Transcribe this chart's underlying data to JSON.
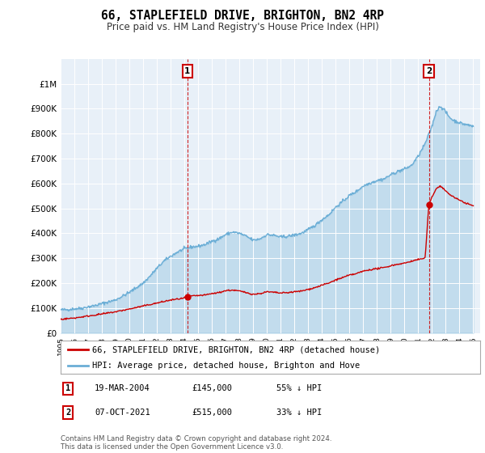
{
  "title": "66, STAPLEFIELD DRIVE, BRIGHTON, BN2 4RP",
  "subtitle": "Price paid vs. HM Land Registry's House Price Index (HPI)",
  "ylim": [
    0,
    1100000
  ],
  "yticks": [
    0,
    100000,
    200000,
    300000,
    400000,
    500000,
    600000,
    700000,
    800000,
    900000,
    1000000
  ],
  "ytick_labels": [
    "£0",
    "£100K",
    "£200K",
    "£300K",
    "£400K",
    "£500K",
    "£600K",
    "£700K",
    "£800K",
    "£900K",
    "£1M"
  ],
  "hpi_color": "#6baed6",
  "hpi_fill_color": "#d6e8f7",
  "price_color": "#cc0000",
  "annotation_color": "#cc0000",
  "bg_color": "#ffffff",
  "chart_bg_color": "#e8f0f8",
  "grid_color": "#ffffff",
  "legend_label_price": "66, STAPLEFIELD DRIVE, BRIGHTON, BN2 4RP (detached house)",
  "legend_label_hpi": "HPI: Average price, detached house, Brighton and Hove",
  "transaction1_date": "19-MAR-2004",
  "transaction1_price": "£145,000",
  "transaction1_note": "55% ↓ HPI",
  "transaction1_label": "1",
  "transaction1_x": 2004.22,
  "transaction1_y": 145000,
  "transaction2_date": "07-OCT-2021",
  "transaction2_price": "£515,000",
  "transaction2_note": "33% ↓ HPI",
  "transaction2_label": "2",
  "transaction2_x": 2021.77,
  "transaction2_y": 515000,
  "footer": "Contains HM Land Registry data © Crown copyright and database right 2024.\nThis data is licensed under the Open Government Licence v3.0.",
  "xmin": 1995,
  "xmax": 2025.5,
  "hpi_anchors": [
    [
      1995.0,
      93000
    ],
    [
      1995.5,
      94000
    ],
    [
      1996.0,
      97000
    ],
    [
      1996.5,
      99000
    ],
    [
      1997.0,
      105000
    ],
    [
      1997.5,
      110000
    ],
    [
      1998.0,
      118000
    ],
    [
      1998.5,
      125000
    ],
    [
      1999.0,
      133000
    ],
    [
      1999.5,
      148000
    ],
    [
      2000.0,
      163000
    ],
    [
      2000.5,
      182000
    ],
    [
      2001.0,
      200000
    ],
    [
      2001.5,
      228000
    ],
    [
      2002.0,
      260000
    ],
    [
      2002.5,
      288000
    ],
    [
      2003.0,
      308000
    ],
    [
      2003.5,
      325000
    ],
    [
      2004.0,
      338000
    ],
    [
      2004.5,
      345000
    ],
    [
      2005.0,
      348000
    ],
    [
      2005.5,
      355000
    ],
    [
      2006.0,
      368000
    ],
    [
      2006.5,
      378000
    ],
    [
      2007.0,
      395000
    ],
    [
      2007.5,
      405000
    ],
    [
      2008.0,
      400000
    ],
    [
      2008.5,
      388000
    ],
    [
      2009.0,
      372000
    ],
    [
      2009.5,
      378000
    ],
    [
      2010.0,
      395000
    ],
    [
      2010.5,
      392000
    ],
    [
      2011.0,
      385000
    ],
    [
      2011.5,
      388000
    ],
    [
      2012.0,
      393000
    ],
    [
      2012.5,
      400000
    ],
    [
      2013.0,
      415000
    ],
    [
      2013.5,
      432000
    ],
    [
      2014.0,
      455000
    ],
    [
      2014.5,
      475000
    ],
    [
      2015.0,
      505000
    ],
    [
      2015.5,
      528000
    ],
    [
      2016.0,
      552000
    ],
    [
      2016.5,
      568000
    ],
    [
      2017.0,
      590000
    ],
    [
      2017.5,
      602000
    ],
    [
      2018.0,
      612000
    ],
    [
      2018.5,
      618000
    ],
    [
      2019.0,
      635000
    ],
    [
      2019.5,
      648000
    ],
    [
      2020.0,
      658000
    ],
    [
      2020.5,
      672000
    ],
    [
      2021.0,
      710000
    ],
    [
      2021.5,
      760000
    ],
    [
      2022.0,
      830000
    ],
    [
      2022.3,
      890000
    ],
    [
      2022.6,
      910000
    ],
    [
      2022.9,
      895000
    ],
    [
      2023.2,
      870000
    ],
    [
      2023.5,
      855000
    ],
    [
      2023.8,
      848000
    ],
    [
      2024.2,
      840000
    ],
    [
      2024.6,
      835000
    ],
    [
      2025.0,
      830000
    ]
  ],
  "price_anchors": [
    [
      1995.0,
      55000
    ],
    [
      1996.0,
      60000
    ],
    [
      1997.0,
      68000
    ],
    [
      1998.0,
      76000
    ],
    [
      1999.0,
      85000
    ],
    [
      2000.0,
      96000
    ],
    [
      2001.0,
      108000
    ],
    [
      2002.0,
      120000
    ],
    [
      2003.0,
      132000
    ],
    [
      2004.0,
      140000
    ],
    [
      2004.22,
      145000
    ],
    [
      2004.5,
      148000
    ],
    [
      2005.0,
      150000
    ],
    [
      2005.5,
      152000
    ],
    [
      2006.0,
      158000
    ],
    [
      2006.5,
      162000
    ],
    [
      2007.0,
      170000
    ],
    [
      2007.5,
      172000
    ],
    [
      2008.0,
      168000
    ],
    [
      2008.5,
      162000
    ],
    [
      2009.0,
      155000
    ],
    [
      2009.5,
      158000
    ],
    [
      2010.0,
      165000
    ],
    [
      2010.5,
      163000
    ],
    [
      2011.0,
      160000
    ],
    [
      2011.5,
      162000
    ],
    [
      2012.0,
      165000
    ],
    [
      2012.5,
      168000
    ],
    [
      2013.0,
      175000
    ],
    [
      2013.5,
      182000
    ],
    [
      2014.0,
      192000
    ],
    [
      2014.5,
      200000
    ],
    [
      2015.0,
      213000
    ],
    [
      2015.5,
      222000
    ],
    [
      2016.0,
      232000
    ],
    [
      2016.5,
      238000
    ],
    [
      2017.0,
      248000
    ],
    [
      2017.5,
      254000
    ],
    [
      2018.0,
      258000
    ],
    [
      2018.5,
      262000
    ],
    [
      2019.0,
      270000
    ],
    [
      2019.5,
      276000
    ],
    [
      2020.0,
      280000
    ],
    [
      2020.5,
      288000
    ],
    [
      2021.0,
      295000
    ],
    [
      2021.5,
      300000
    ],
    [
      2021.77,
      515000
    ],
    [
      2022.0,
      545000
    ],
    [
      2022.3,
      580000
    ],
    [
      2022.6,
      590000
    ],
    [
      2022.9,
      575000
    ],
    [
      2023.2,
      560000
    ],
    [
      2023.5,
      548000
    ],
    [
      2023.8,
      538000
    ],
    [
      2024.2,
      528000
    ],
    [
      2024.6,
      518000
    ],
    [
      2025.0,
      510000
    ]
  ]
}
